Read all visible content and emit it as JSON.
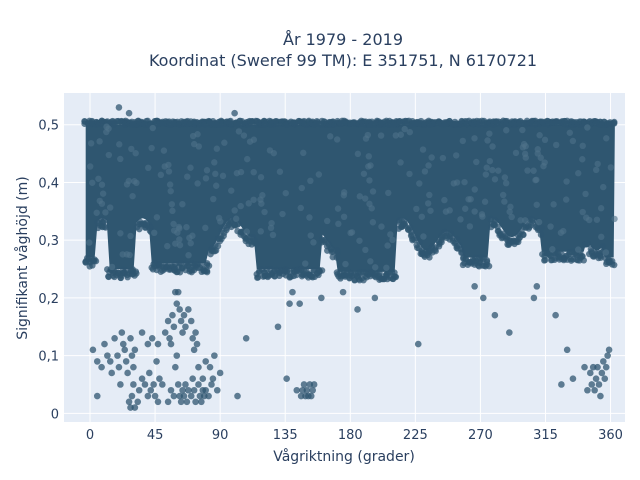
{
  "chart_data": {
    "type": "scatter",
    "title_lines": [
      "År 1979 - 2019",
      "Koordinat (Sweref 99 TM): E 351751, N 6170721"
    ],
    "xlabel": "Vågriktning (grader)",
    "ylabel": "Signifikant våghöjd (m)",
    "xlim": [
      -18,
      370
    ],
    "ylim": [
      -0.015,
      0.555
    ],
    "x_ticks": [
      0,
      45,
      90,
      135,
      180,
      225,
      270,
      315,
      360
    ],
    "x_tick_labels": [
      "0",
      "45",
      "90",
      "135",
      "180",
      "225",
      "270",
      "315",
      "360"
    ],
    "y_ticks": [
      0,
      0.1,
      0.2,
      0.3,
      0.4,
      0.5
    ],
    "y_tick_labels": [
      "0",
      "0,1",
      "0,2",
      "0,3",
      "0,4",
      "0,5"
    ],
    "grid": true,
    "marker_color": "#2f5670",
    "plot_background": "#e5ecf6",
    "dense_region": {
      "x_range": [
        -3,
        363
      ],
      "y_range": [
        0.26,
        0.5
      ]
    },
    "points": [
      [
        20,
        0.53
      ],
      [
        27,
        0.52
      ],
      [
        100,
        0.52
      ],
      [
        2,
        0.11
      ],
      [
        5,
        0.09
      ],
      [
        5,
        0.03
      ],
      [
        8,
        0.08
      ],
      [
        10,
        0.12
      ],
      [
        12,
        0.1
      ],
      [
        14,
        0.09
      ],
      [
        15,
        0.07
      ],
      [
        17,
        0.13
      ],
      [
        19,
        0.1
      ],
      [
        20,
        0.08
      ],
      [
        21,
        0.05
      ],
      [
        22,
        0.14
      ],
      [
        23,
        0.12
      ],
      [
        24,
        0.11
      ],
      [
        25,
        0.09
      ],
      [
        26,
        0.07
      ],
      [
        28,
        0.13
      ],
      [
        29,
        0.1
      ],
      [
        30,
        0.08
      ],
      [
        31,
        0.11
      ],
      [
        27,
        0.02
      ],
      [
        28,
        0.01
      ],
      [
        29,
        0.03
      ],
      [
        31,
        0.01
      ],
      [
        33,
        0.02
      ],
      [
        30,
        0.05
      ],
      [
        34,
        0.04
      ],
      [
        36,
        0.06
      ],
      [
        38,
        0.05
      ],
      [
        40,
        0.03
      ],
      [
        41,
        0.07
      ],
      [
        42,
        0.04
      ],
      [
        44,
        0.05
      ],
      [
        45,
        0.03
      ],
      [
        47,
        0.02
      ],
      [
        48,
        0.06
      ],
      [
        50,
        0.05
      ],
      [
        36,
        0.14
      ],
      [
        40,
        0.12
      ],
      [
        43,
        0.13
      ],
      [
        46,
        0.09
      ],
      [
        47,
        0.12
      ],
      [
        52,
        0.14
      ],
      [
        54,
        0.16
      ],
      [
        55,
        0.13
      ],
      [
        56,
        0.12
      ],
      [
        57,
        0.17
      ],
      [
        58,
        0.15
      ],
      [
        59,
        0.21
      ],
      [
        60,
        0.19
      ],
      [
        61,
        0.21
      ],
      [
        62,
        0.18
      ],
      [
        63,
        0.16
      ],
      [
        64,
        0.14
      ],
      [
        65,
        0.17
      ],
      [
        66,
        0.15
      ],
      [
        68,
        0.18
      ],
      [
        70,
        0.16
      ],
      [
        71,
        0.13
      ],
      [
        72,
        0.11
      ],
      [
        73,
        0.14
      ],
      [
        74,
        0.12
      ],
      [
        59,
        0.08
      ],
      [
        60,
        0.1
      ],
      [
        61,
        0.05
      ],
      [
        62,
        0.03
      ],
      [
        63,
        0.02
      ],
      [
        64,
        0.04
      ],
      [
        65,
        0.03
      ],
      [
        66,
        0.05
      ],
      [
        67,
        0.02
      ],
      [
        68,
        0.04
      ],
      [
        70,
        0.03
      ],
      [
        71,
        0.06
      ],
      [
        72,
        0.04
      ],
      [
        73,
        0.02
      ],
      [
        75,
        0.05
      ],
      [
        76,
        0.03
      ],
      [
        77,
        0.02
      ],
      [
        78,
        0.04
      ],
      [
        79,
        0.03
      ],
      [
        80,
        0.04
      ],
      [
        82,
        0.03
      ],
      [
        84,
        0.05
      ],
      [
        58,
        0.03
      ],
      [
        56,
        0.04
      ],
      [
        54,
        0.02
      ],
      [
        75,
        0.08
      ],
      [
        78,
        0.06
      ],
      [
        80,
        0.09
      ],
      [
        85,
        0.06
      ],
      [
        88,
        0.04
      ],
      [
        90,
        0.07
      ],
      [
        86,
        0.1
      ],
      [
        83,
        0.08
      ],
      [
        102,
        0.03
      ],
      [
        108,
        0.13
      ],
      [
        130,
        0.15
      ],
      [
        136,
        0.06
      ],
      [
        138,
        0.19
      ],
      [
        140,
        0.21
      ],
      [
        143,
        0.04
      ],
      [
        145,
        0.19
      ],
      [
        146,
        0.03
      ],
      [
        147,
        0.04
      ],
      [
        148,
        0.05
      ],
      [
        149,
        0.03
      ],
      [
        150,
        0.04
      ],
      [
        151,
        0.03
      ],
      [
        152,
        0.05
      ],
      [
        153,
        0.03
      ],
      [
        154,
        0.04
      ],
      [
        155,
        0.05
      ],
      [
        160,
        0.2
      ],
      [
        175,
        0.21
      ],
      [
        185,
        0.18
      ],
      [
        197,
        0.2
      ],
      [
        227,
        0.12
      ],
      [
        266,
        0.22
      ],
      [
        272,
        0.2
      ],
      [
        280,
        0.17
      ],
      [
        290,
        0.14
      ],
      [
        307,
        0.2
      ],
      [
        309,
        0.22
      ],
      [
        322,
        0.17
      ],
      [
        326,
        0.05
      ],
      [
        330,
        0.11
      ],
      [
        334,
        0.06
      ],
      [
        342,
        0.08
      ],
      [
        344,
        0.04
      ],
      [
        346,
        0.07
      ],
      [
        347,
        0.05
      ],
      [
        348,
        0.08
      ],
      [
        349,
        0.04
      ],
      [
        350,
        0.06
      ],
      [
        351,
        0.08
      ],
      [
        352,
        0.05
      ],
      [
        353,
        0.03
      ],
      [
        354,
        0.07
      ],
      [
        355,
        0.09
      ],
      [
        356,
        0.06
      ],
      [
        357,
        0.08
      ],
      [
        358,
        0.1
      ],
      [
        359,
        0.11
      ]
    ]
  }
}
